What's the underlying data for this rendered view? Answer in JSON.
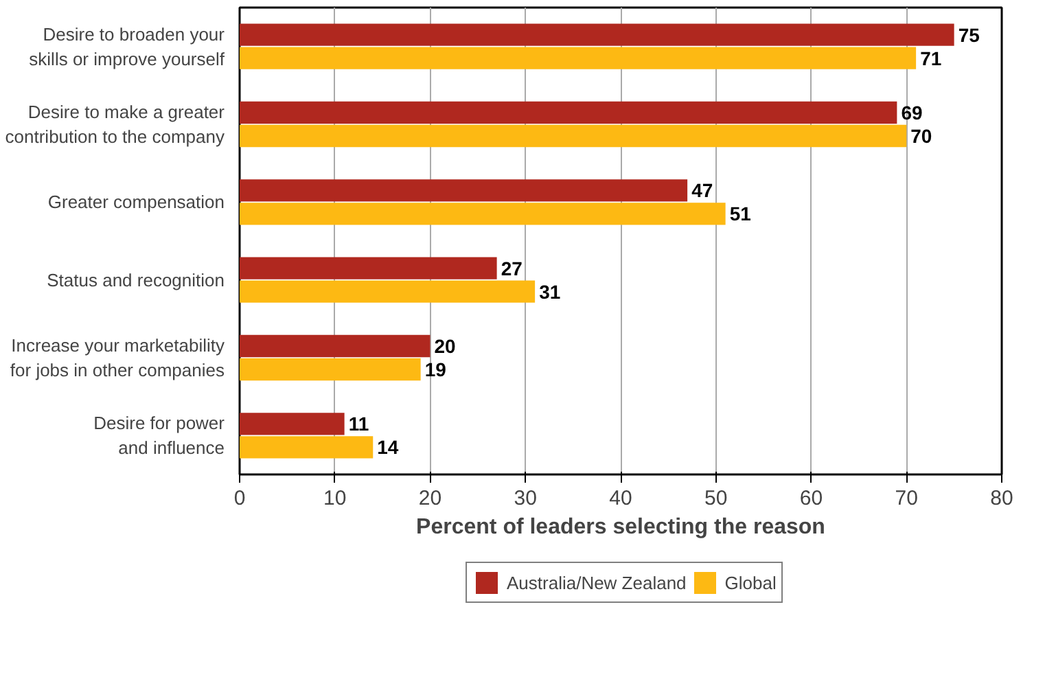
{
  "chart_data": {
    "type": "bar",
    "orientation": "horizontal",
    "xlabel": "Percent of leaders selecting the reason",
    "categories": [
      "Desire to broaden your\nskills or improve yourself",
      "Desire to make a greater\ncontribution to the company",
      "Greater compensation",
      "Status and recognition",
      "Increase your marketability\nfor jobs in other companies",
      "Desire for power\nand influence"
    ],
    "series": [
      {
        "name": "Australia/New Zealand",
        "color": "#b0281f",
        "values": [
          75,
          69,
          47,
          27,
          20,
          11
        ]
      },
      {
        "name": "Global",
        "color": "#fdb913",
        "values": [
          71,
          70,
          51,
          31,
          19,
          14
        ]
      }
    ],
    "xlim": [
      0,
      80
    ],
    "xticks": [
      0,
      10,
      20,
      30,
      40,
      50,
      60,
      70,
      80
    ],
    "grid": "x",
    "legend": "bottom",
    "data_labels": true
  }
}
